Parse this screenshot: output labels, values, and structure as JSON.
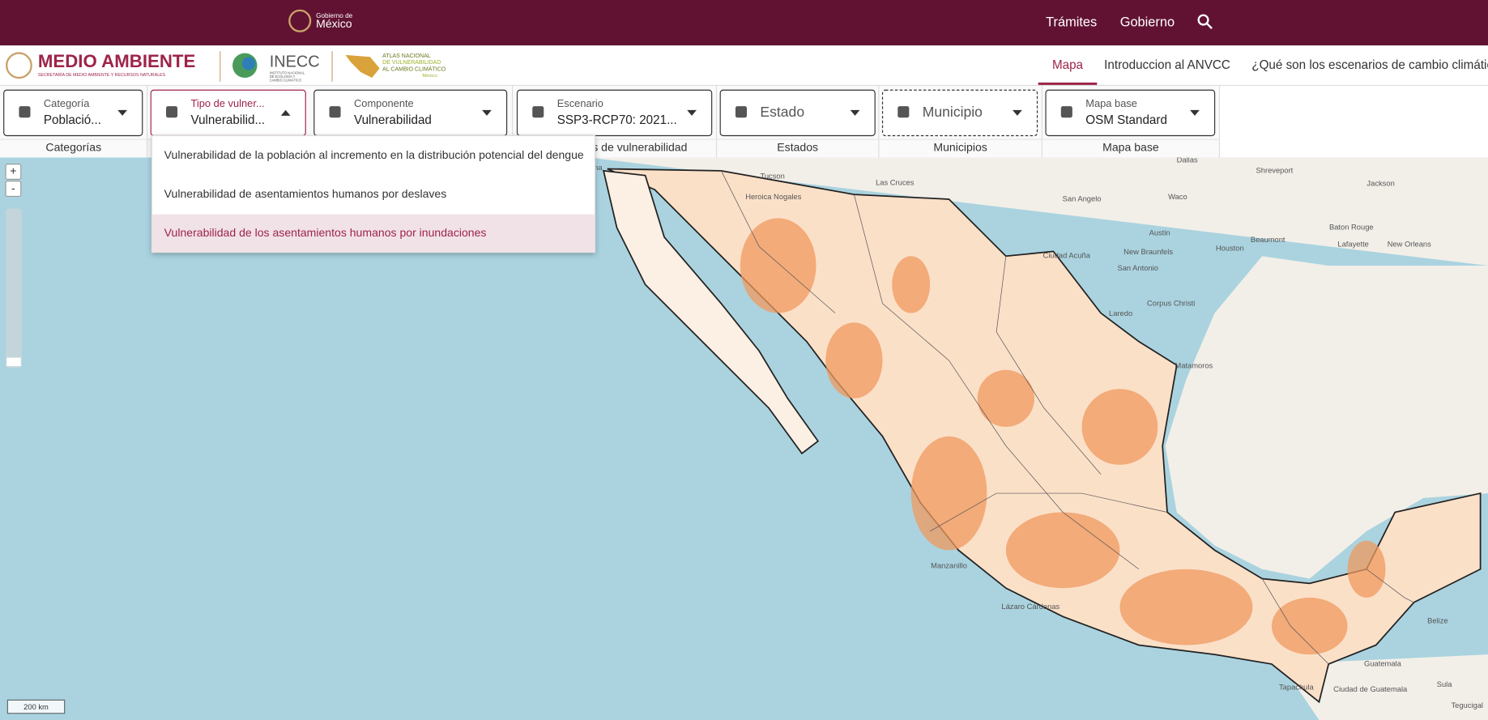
{
  "top_bar": {
    "logo_line1": "Gobierno de",
    "logo_line2": "México",
    "links": [
      "Trámites",
      "Gobierno"
    ]
  },
  "header": {
    "semarnat_title": "MEDIO AMBIENTE",
    "semarnat_subtitle": "SECRETARÍA DE MEDIO AMBIENTE Y RECURSOS NATURALES",
    "inecc_title": "INECC",
    "inecc_subtitle": [
      "INSTITUTO NACIONAL",
      "DE ECOLOGÍA Y",
      "CAMBIO CLIMÁTICO"
    ],
    "atlas": [
      "ATLAS NACIONAL",
      "DE VULNERABILIDAD",
      "AL CAMBIO CLIMÁTICO",
      "México"
    ],
    "nav": [
      "Mapa",
      "Introduccion al ANVCC",
      "¿Qué son los escenarios de cambio climático?"
    ]
  },
  "filters": [
    {
      "label": "Categoría",
      "value": "Població..."
    },
    {
      "label": "Tipo de vulner...",
      "value": "Vulnerabilid..."
    },
    {
      "label": "Componente",
      "value": "Vulnerabilidad"
    },
    {
      "label": "Escenario",
      "value": "SSP3-RCP70: 2021..."
    },
    {
      "value": "Estado"
    },
    {
      "value": "Municipio"
    },
    {
      "label": "Mapa base",
      "value": "OSM Standard"
    }
  ],
  "groups": [
    "Categorías",
    "Escenarios de vulnerabilidad",
    "Estados",
    "Municipios",
    "Mapa base"
  ],
  "dropdown": {
    "options": [
      "Vulnerabilidad de la población al incremento en la distribución potencial del dengue",
      "Vulnerabilidad de asentamientos humanos por deslaves",
      "Vulnerabilidad de los asentamientos humanos por inundaciones"
    ]
  },
  "map": {
    "zoom_in": "+",
    "zoom_out": "-",
    "scale": "200 km",
    "places": [
      "ana",
      "Tucson",
      "Heroica Nogales",
      "Las Cruces",
      "Dallas",
      "Shreveport",
      "Jackson",
      "San Angelo",
      "Waco",
      "Austin",
      "New Braunfels",
      "San Antonio",
      "Houston",
      "Beaumont",
      "Baton Rouge",
      "Lafayette",
      "New Orleans",
      "Ciudad Acuña",
      "Laredo",
      "Corpus Christi",
      "Matamoros",
      "Manzanillo",
      "Lázaro Cárdenas",
      "Tapachula",
      "Guatemala",
      "Ciudad de Guatemala",
      "Belize",
      "Sula",
      "Tegucigal"
    ]
  }
}
